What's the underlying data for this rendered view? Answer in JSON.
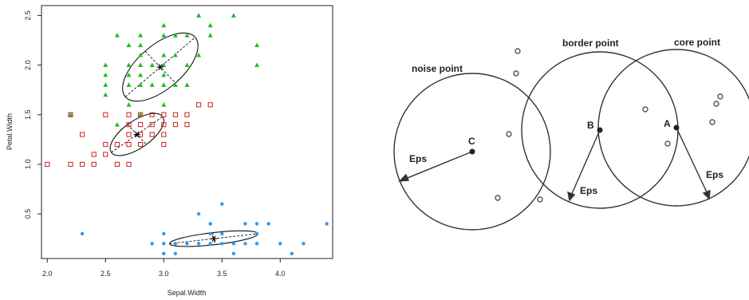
{
  "chart_data": {
    "type": "scatter",
    "title": "",
    "xlabel": "Sepal.Width",
    "ylabel": "Petal.Width",
    "xlim": [
      1.95,
      4.45
    ],
    "ylim": [
      0.05,
      2.6
    ],
    "xticks": [
      2.0,
      2.5,
      3.0,
      3.5,
      4.0
    ],
    "yticks": [
      0.5,
      1.0,
      1.5,
      2.0,
      2.5
    ],
    "xtick_labels": [
      "2.0",
      "2.5",
      "3.0",
      "3.5",
      "4.0"
    ],
    "ytick_labels": [
      "0.5",
      "1.0",
      "1.5",
      "2.0",
      "2.5"
    ],
    "grid": false,
    "legend": "none",
    "series": [
      {
        "marker": "triangle",
        "color": "#22bb22",
        "points": [
          [
            2.2,
            1.5
          ],
          [
            2.5,
            1.7
          ],
          [
            2.5,
            1.8
          ],
          [
            2.5,
            1.9
          ],
          [
            2.5,
            2.0
          ],
          [
            2.6,
            1.4
          ],
          [
            2.6,
            2.3
          ],
          [
            2.7,
            1.6
          ],
          [
            2.7,
            1.8
          ],
          [
            2.7,
            1.9
          ],
          [
            2.7,
            2.0
          ],
          [
            2.7,
            2.2
          ],
          [
            2.8,
            1.5
          ],
          [
            2.8,
            1.8
          ],
          [
            2.8,
            1.9
          ],
          [
            2.8,
            2.0
          ],
          [
            2.8,
            2.1
          ],
          [
            2.8,
            2.2
          ],
          [
            2.8,
            2.3
          ],
          [
            2.9,
            1.8
          ],
          [
            2.9,
            2.0
          ],
          [
            3.0,
            1.6
          ],
          [
            3.0,
            1.8
          ],
          [
            3.0,
            1.9
          ],
          [
            3.0,
            2.0
          ],
          [
            3.0,
            2.1
          ],
          [
            3.0,
            2.3
          ],
          [
            3.0,
            2.4
          ],
          [
            3.1,
            1.8
          ],
          [
            3.1,
            2.1
          ],
          [
            3.1,
            2.3
          ],
          [
            3.2,
            1.8
          ],
          [
            3.2,
            2.0
          ],
          [
            3.2,
            2.3
          ],
          [
            3.3,
            2.1
          ],
          [
            3.3,
            2.5
          ],
          [
            3.4,
            2.3
          ],
          [
            3.4,
            2.4
          ],
          [
            3.6,
            2.5
          ],
          [
            3.8,
            2.0
          ],
          [
            3.8,
            2.2
          ]
        ]
      },
      {
        "marker": "square",
        "color": "#cc2222",
        "points": [
          [
            2.0,
            1.0
          ],
          [
            2.2,
            1.0
          ],
          [
            2.2,
            1.5
          ],
          [
            2.3,
            1.0
          ],
          [
            2.3,
            1.3
          ],
          [
            2.4,
            1.0
          ],
          [
            2.4,
            1.1
          ],
          [
            2.5,
            1.1
          ],
          [
            2.5,
            1.2
          ],
          [
            2.5,
            1.5
          ],
          [
            2.6,
            1.0
          ],
          [
            2.6,
            1.2
          ],
          [
            2.7,
            1.0
          ],
          [
            2.7,
            1.2
          ],
          [
            2.7,
            1.3
          ],
          [
            2.7,
            1.4
          ],
          [
            2.7,
            1.5
          ],
          [
            2.8,
            1.2
          ],
          [
            2.8,
            1.3
          ],
          [
            2.8,
            1.4
          ],
          [
            2.8,
            1.5
          ],
          [
            2.9,
            1.3
          ],
          [
            2.9,
            1.4
          ],
          [
            2.9,
            1.5
          ],
          [
            3.0,
            1.2
          ],
          [
            3.0,
            1.3
          ],
          [
            3.0,
            1.4
          ],
          [
            3.0,
            1.5
          ],
          [
            3.1,
            1.4
          ],
          [
            3.1,
            1.5
          ],
          [
            3.2,
            1.4
          ],
          [
            3.2,
            1.5
          ],
          [
            3.3,
            1.6
          ],
          [
            3.4,
            1.6
          ]
        ]
      },
      {
        "marker": "circle",
        "color": "#3399ee",
        "points": [
          [
            2.3,
            0.3
          ],
          [
            2.9,
            0.2
          ],
          [
            3.0,
            0.1
          ],
          [
            3.0,
            0.2
          ],
          [
            3.0,
            0.3
          ],
          [
            3.1,
            0.1
          ],
          [
            3.1,
            0.2
          ],
          [
            3.2,
            0.2
          ],
          [
            3.3,
            0.2
          ],
          [
            3.4,
            0.2
          ],
          [
            3.4,
            0.3
          ],
          [
            3.4,
            0.4
          ],
          [
            3.5,
            0.2
          ],
          [
            3.5,
            0.3
          ],
          [
            3.6,
            0.2
          ],
          [
            3.7,
            0.2
          ],
          [
            3.7,
            0.4
          ],
          [
            3.8,
            0.2
          ],
          [
            3.8,
            0.3
          ],
          [
            3.8,
            0.4
          ],
          [
            3.9,
            0.4
          ],
          [
            4.0,
            0.2
          ],
          [
            4.1,
            0.1
          ],
          [
            4.2,
            0.2
          ],
          [
            4.4,
            0.4
          ],
          [
            3.3,
            0.5
          ],
          [
            3.5,
            0.6
          ],
          [
            3.6,
            0.1
          ],
          [
            3.4,
            0.4
          ]
        ]
      }
    ],
    "centroids": [
      [
        2.97,
        1.98
      ],
      [
        2.77,
        1.3
      ],
      [
        3.43,
        0.25
      ]
    ],
    "ellipses": [
      {
        "cx": 2.97,
        "cy": 1.98,
        "major_pts": [
          [
            2.67,
            1.68
          ],
          [
            3.27,
            2.28
          ]
        ],
        "minor_pts": [
          [
            2.84,
            2.14
          ],
          [
            3.1,
            1.82
          ]
        ]
      },
      {
        "cx": 2.77,
        "cy": 1.3,
        "major_pts": [
          [
            2.55,
            1.12
          ],
          [
            2.99,
            1.48
          ]
        ],
        "minor_pts": [
          [
            2.69,
            1.4
          ],
          [
            2.85,
            1.2
          ]
        ]
      },
      {
        "cx": 3.43,
        "cy": 0.25,
        "major_pts": [
          [
            3.05,
            0.2
          ],
          [
            3.81,
            0.3
          ]
        ],
        "minor_pts": [
          [
            3.42,
            0.31
          ],
          [
            3.44,
            0.19
          ]
        ]
      }
    ]
  },
  "diagram": {
    "labels": {
      "noise": "noise point",
      "border": "border point",
      "core": "core point",
      "A": "A",
      "B": "B",
      "C": "C",
      "eps": "Eps"
    }
  }
}
